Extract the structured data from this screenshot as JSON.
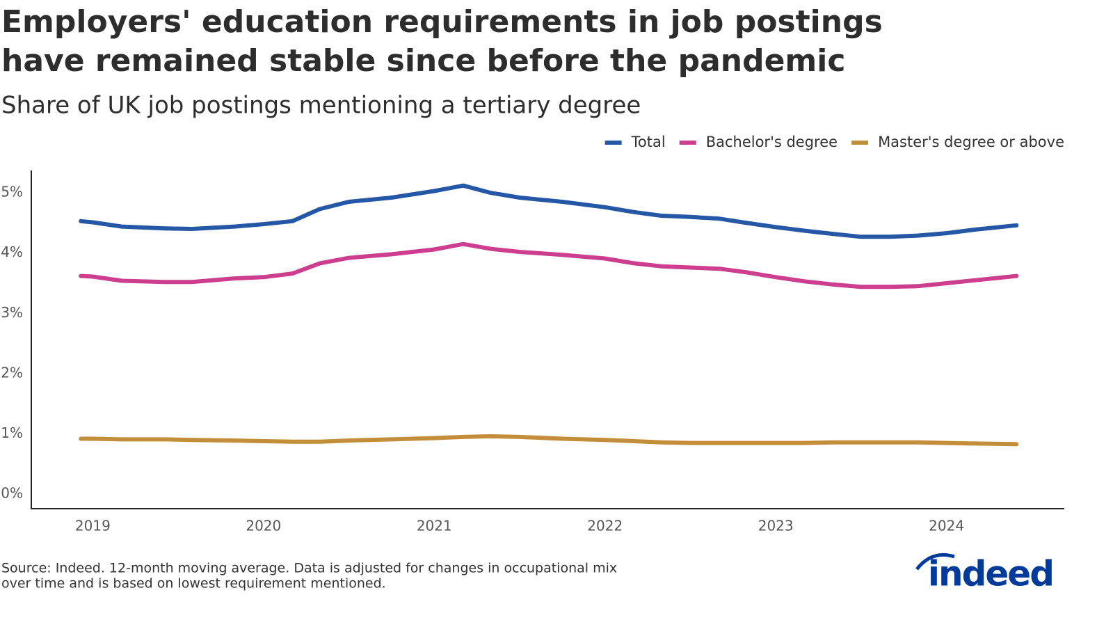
{
  "chart_data": {
    "type": "line",
    "title": [
      "Employers' education requirements in job postings",
      "have remained stable since before the pandemic"
    ],
    "subtitle": "Share of UK job postings mentioning a tertiary degree",
    "x": [
      2018.93,
      2019,
      2019.17,
      2019.42,
      2019.58,
      2019.83,
      2020,
      2020.17,
      2020.33,
      2020.5,
      2020.75,
      2021,
      2021.17,
      2021.33,
      2021.5,
      2021.75,
      2022,
      2022.17,
      2022.33,
      2022.5,
      2022.67,
      2022.83,
      2023,
      2023.17,
      2023.33,
      2023.5,
      2023.67,
      2023.83,
      2024,
      2024.17,
      2024.41
    ],
    "series": [
      {
        "name": "Total",
        "color": "#2557a7",
        "values": [
          4.53,
          4.51,
          4.44,
          4.41,
          4.4,
          4.44,
          4.48,
          4.53,
          4.73,
          4.85,
          4.92,
          5.03,
          5.12,
          5.0,
          4.92,
          4.85,
          4.76,
          4.68,
          4.62,
          4.6,
          4.57,
          4.5,
          4.43,
          4.37,
          4.32,
          4.27,
          4.27,
          4.29,
          4.33,
          4.39,
          4.46
        ]
      },
      {
        "name": "Bachelor's degree",
        "color": "#cd3e8e",
        "values": [
          3.62,
          3.61,
          3.54,
          3.52,
          3.52,
          3.58,
          3.6,
          3.66,
          3.83,
          3.92,
          3.98,
          4.06,
          4.15,
          4.07,
          4.02,
          3.97,
          3.91,
          3.83,
          3.78,
          3.76,
          3.74,
          3.68,
          3.6,
          3.53,
          3.48,
          3.44,
          3.44,
          3.45,
          3.5,
          3.55,
          3.62
        ]
      },
      {
        "name": "Master's degree or above",
        "color": "#c38d3a",
        "values": [
          0.92,
          0.92,
          0.91,
          0.91,
          0.9,
          0.89,
          0.88,
          0.87,
          0.87,
          0.89,
          0.91,
          0.93,
          0.95,
          0.96,
          0.95,
          0.92,
          0.9,
          0.88,
          0.86,
          0.85,
          0.85,
          0.85,
          0.85,
          0.85,
          0.86,
          0.86,
          0.86,
          0.86,
          0.85,
          0.84,
          0.83
        ]
      }
    ],
    "xlim": [
      2018.64,
      2024.69
    ],
    "xticks": [
      2019,
      2020,
      2021,
      2022,
      2023,
      2024
    ],
    "ylim": [
      -0.24,
      5.37
    ],
    "yticks": [
      {
        "value": 0,
        "label": "0%"
      },
      {
        "value": 1,
        "label": "1%"
      },
      {
        "value": 2,
        "label": "2%"
      },
      {
        "value": 3,
        "label": "3%"
      },
      {
        "value": 4,
        "label": "4%"
      },
      {
        "value": 5,
        "label": "5%"
      }
    ],
    "grid": false,
    "legend": "top-right",
    "source": [
      "Source: Indeed. 12-month moving average. Data is adjusted for changes in occupational mix",
      "over time and is based on lowest requirement mentioned."
    ],
    "logo": "indeed"
  }
}
